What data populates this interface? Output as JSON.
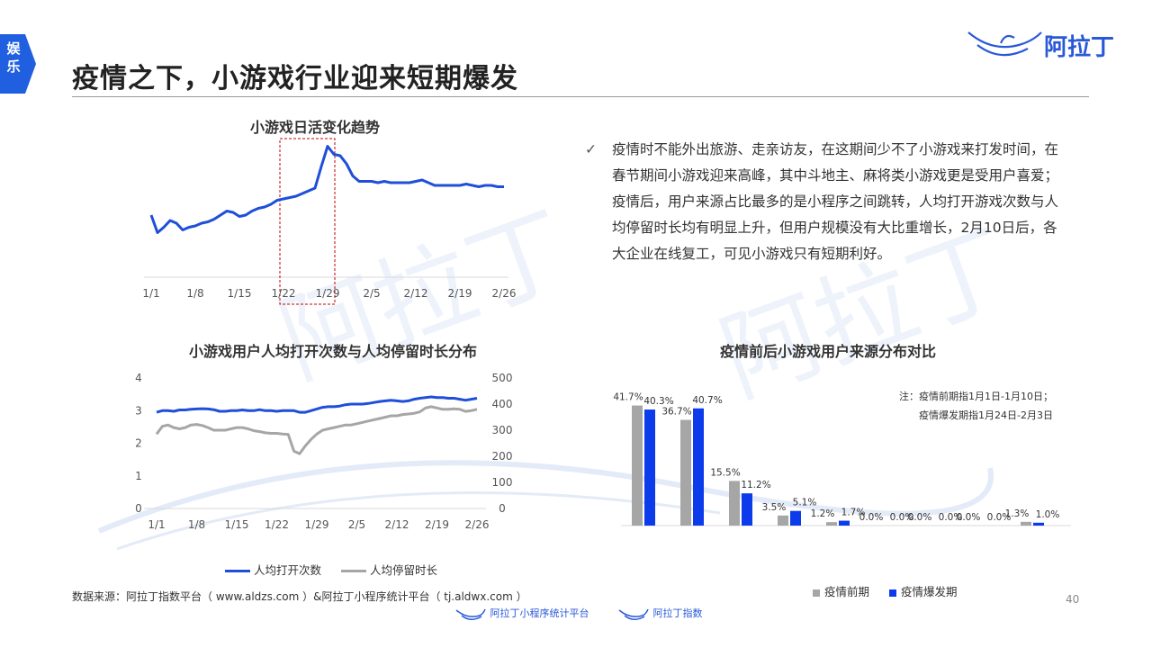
{
  "side_tab": {
    "label": "娱\n乐",
    "color": "#1f5fe0"
  },
  "header": {
    "title": "疫情之下，小游戏行业迎来短期爆发",
    "brand": "阿拉丁"
  },
  "note": {
    "check_icon": "checkmark-icon",
    "text": "疫情时不能外出旅游、走亲访友，在这期间少不了小游戏来打发时间，在春节期间小游戏迎来高峰，其中斗地主、麻将类小游戏更是受用户喜爱；疫情后，用户来源占比最多的是小程序之间跳转，人均打开游戏次数与人均停留时长均有明显上升，但用户规模没有大比重增长，2月10日后，各大企业在线复工，可见小游戏只有短期利好。"
  },
  "source": "数据来源：阿拉丁指数平台（ www.aldzs.com ）&阿拉丁小程序统计平台（ tj.aldwx.com ）",
  "page_number": "40",
  "footer": {
    "logo1": "阿拉丁小程序统计平台",
    "logo2": "阿拉丁指数"
  },
  "colors": {
    "blue": "#1f4fd8",
    "gray": "#a6a6a6",
    "bar_blue": "#0b3bea"
  },
  "chart_data": [
    {
      "type": "line",
      "title": "小游戏日活变化趋势",
      "x_ticks": [
        "1/1",
        "1/8",
        "1/15",
        "1/22",
        "1/29",
        "2/5",
        "2/12",
        "2/19",
        "2/26"
      ],
      "days": 57,
      "series": [
        {
          "values": [
            46,
            33,
            37,
            42,
            40,
            35,
            37,
            38,
            40,
            41,
            43,
            46,
            49,
            48,
            45,
            46,
            49,
            51,
            52,
            54,
            57,
            58,
            59,
            60,
            62,
            64,
            66,
            82,
            97,
            91,
            90,
            84,
            75,
            71,
            71,
            71,
            70,
            71,
            70,
            70,
            70,
            70,
            71,
            72,
            70,
            68,
            68,
            68,
            68,
            68,
            69,
            68,
            67,
            68,
            68,
            67,
            67
          ]
        }
      ],
      "highlight_range": [
        "1/22",
        "1/29"
      ]
    },
    {
      "type": "line",
      "title": "小游戏用户人均打开次数与人均停留时长分布",
      "x_ticks": [
        "1/1",
        "1/8",
        "1/15",
        "1/22",
        "1/29",
        "2/5",
        "2/12",
        "2/19",
        "2/26"
      ],
      "days": 57,
      "y_left": {
        "ticks": [
          "0",
          "1",
          "2",
          "3",
          "4"
        ],
        "range": [
          0,
          4
        ]
      },
      "y_right": {
        "ticks": [
          "0",
          "100",
          "200",
          "300",
          "400",
          "500"
        ],
        "range": [
          0,
          500
        ]
      },
      "series": [
        {
          "name": "人均打开次数",
          "axis": "left",
          "color": "#1f4fd8",
          "values": [
            2.95,
            3.0,
            3.0,
            2.98,
            3.02,
            3.02,
            3.04,
            3.05,
            3.06,
            3.05,
            3.03,
            2.98,
            2.98,
            3.0,
            3.0,
            3.02,
            3.0,
            3.0,
            3.03,
            3.0,
            3.0,
            2.98,
            3.0,
            3.0,
            3.0,
            2.95,
            2.95,
            3.0,
            3.05,
            3.1,
            3.12,
            3.12,
            3.14,
            3.18,
            3.2,
            3.2,
            3.2,
            3.22,
            3.25,
            3.28,
            3.3,
            3.32,
            3.3,
            3.28,
            3.3,
            3.35,
            3.38,
            3.4,
            3.42,
            3.4,
            3.4,
            3.38,
            3.38,
            3.35,
            3.32,
            3.35,
            3.38
          ]
        },
        {
          "name": "人均停留时长",
          "axis": "right",
          "color": "#a6a6a6",
          "values": [
            285,
            315,
            320,
            310,
            305,
            310,
            320,
            322,
            318,
            310,
            300,
            300,
            300,
            305,
            310,
            310,
            305,
            298,
            295,
            290,
            288,
            288,
            285,
            284,
            220,
            210,
            240,
            265,
            285,
            300,
            305,
            310,
            315,
            320,
            320,
            325,
            330,
            335,
            340,
            345,
            350,
            355,
            355,
            360,
            362,
            365,
            370,
            385,
            390,
            385,
            380,
            380,
            382,
            380,
            372,
            375,
            380
          ]
        }
      ]
    },
    {
      "type": "bar",
      "title": "疫情前后小游戏用户来源分布对比",
      "note": "注：疫情前期指1月1日-1月10日；\n疫情爆发期指1月24日-2月3日",
      "categories": [
        "c1",
        "c2",
        "c3",
        "c4",
        "c5",
        "c6",
        "c7",
        "c8",
        "c9"
      ],
      "series": [
        {
          "name": "疫情前期",
          "color": "#a6a6a6",
          "values": [
            41.7,
            36.7,
            15.5,
            3.5,
            1.2,
            0.0,
            0.0,
            0.0,
            1.3
          ],
          "labels": [
            "41.7%",
            "36.7%",
            "15.5%",
            "3.5%",
            "1.2%",
            "0.0%",
            "0.0%",
            "0.0%",
            "1.3%"
          ]
        },
        {
          "name": "疫情爆发期",
          "color": "#0b3bea",
          "values": [
            40.3,
            40.7,
            11.2,
            5.1,
            1.7,
            0.0,
            0.0,
            0.0,
            1.0
          ],
          "labels": [
            "40.3%",
            "40.7%",
            "11.2%",
            "5.1%",
            "1.7%",
            "0.0%",
            "0.0%",
            "0.0%",
            "1.0%"
          ]
        }
      ]
    }
  ]
}
